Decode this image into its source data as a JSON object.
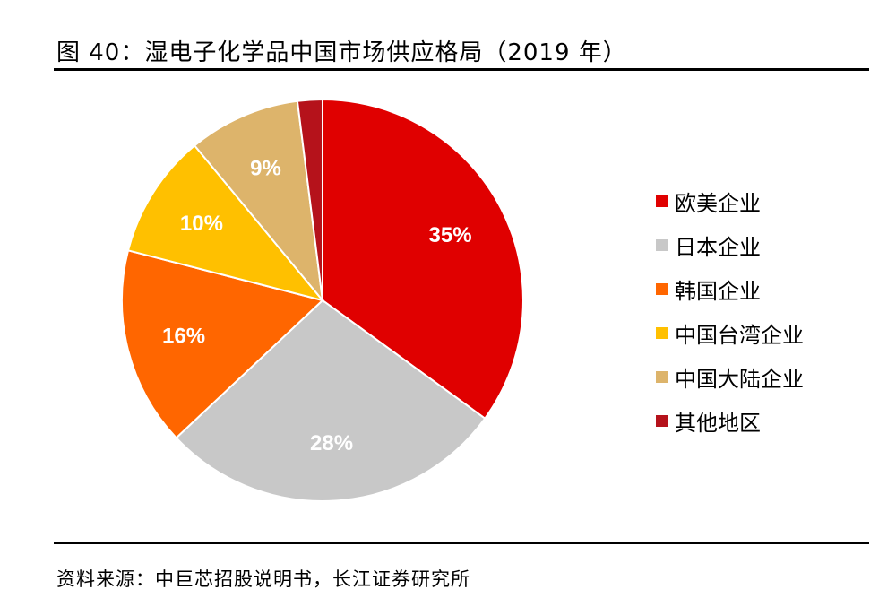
{
  "figure": {
    "title": "图 40：湿电子化学品中国市场供应格局（2019 年）",
    "source": "资料来源：中巨芯招股说明书，长江证券研究所"
  },
  "chart_data": {
    "type": "pie",
    "slices": [
      {
        "label": "欧美企业",
        "value": 35,
        "display": "35%",
        "color": "#e00000",
        "label_color": "#ffffff"
      },
      {
        "label": "日本企业",
        "value": 28,
        "display": "28%",
        "color": "#c8c8c8",
        "label_color": "#ffffff"
      },
      {
        "label": "韩国企业",
        "value": 16,
        "display": "16%",
        "color": "#ff6600",
        "label_color": "#ffffff"
      },
      {
        "label": "中国台湾企业",
        "value": 10,
        "display": "10%",
        "color": "#ffc000",
        "label_color": "#ffffff"
      },
      {
        "label": "中国大陆企业",
        "value": 9,
        "display": "9%",
        "color": "#ddb46b",
        "label_color": "#ffffff"
      },
      {
        "label": "其他地区",
        "value": 2,
        "display": "",
        "color": "#b5121b",
        "label_color": "#ffffff"
      }
    ],
    "legend_position": "right"
  }
}
